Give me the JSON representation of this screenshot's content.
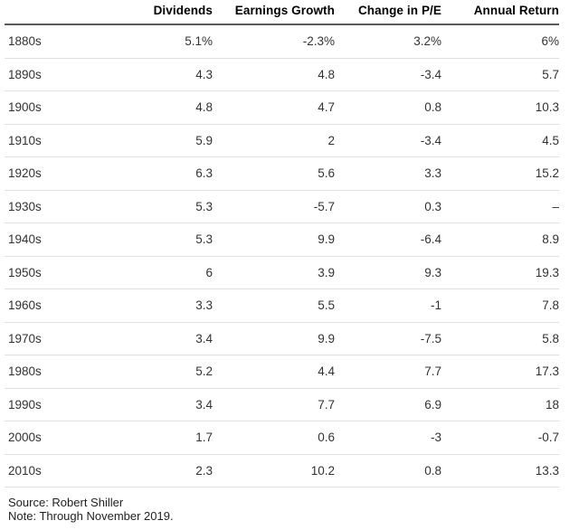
{
  "chart_data": {
    "type": "table",
    "title": "",
    "columns": [
      "",
      "Dividends",
      "Earnings Growth",
      "Change in P/E",
      "Annual Return"
    ],
    "column_keys": [
      "decade",
      "dividends",
      "earnings-growth",
      "change-in-pe",
      "annual-return"
    ],
    "rows": [
      [
        "1880s",
        "5.1%",
        "-2.3%",
        "3.2%",
        "6%"
      ],
      [
        "1890s",
        "4.3",
        "4.8",
        "-3.4",
        "5.7"
      ],
      [
        "1900s",
        "4.8",
        "4.7",
        "0.8",
        "10.3"
      ],
      [
        "1910s",
        "5.9",
        "2",
        "-3.4",
        "4.5"
      ],
      [
        "1920s",
        "6.3",
        "5.6",
        "3.3",
        "15.2"
      ],
      [
        "1930s",
        "5.3",
        "-5.7",
        "0.3",
        "–"
      ],
      [
        "1940s",
        "5.3",
        "9.9",
        "-6.4",
        "8.9"
      ],
      [
        "1950s",
        "6",
        "3.9",
        "9.3",
        "19.3"
      ],
      [
        "1960s",
        "3.3",
        "5.5",
        "-1",
        "7.8"
      ],
      [
        "1970s",
        "3.4",
        "9.9",
        "-7.5",
        "5.8"
      ],
      [
        "1980s",
        "5.2",
        "4.4",
        "7.7",
        "17.3"
      ],
      [
        "1990s",
        "3.4",
        "7.7",
        "6.9",
        "18"
      ],
      [
        "2000s",
        "1.7",
        "0.6",
        "-3",
        "-0.7"
      ],
      [
        "2010s",
        "2.3",
        "10.2",
        "0.8",
        "13.3"
      ]
    ],
    "layout_hints": {
      "value_alignment": "right",
      "row_label_alignment": "left",
      "header_rule_color": "#58595b",
      "row_rule_color": "#e0e0e0",
      "units": "percent"
    }
  },
  "footer": {
    "source": "Source: Robert Shiller",
    "note": "Note: Through November 2019."
  }
}
